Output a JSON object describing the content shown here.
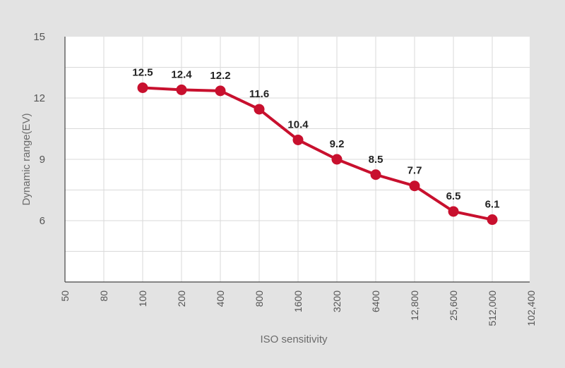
{
  "chart_data": {
    "type": "line",
    "xlabel": "ISO sensitivity",
    "ylabel": "Dynamic range(EV)",
    "categories": [
      "50",
      "80",
      "100",
      "200",
      "400",
      "800",
      "1600",
      "3200",
      "6400",
      "12,800",
      "25,600",
      "512,000",
      "102,400"
    ],
    "y_ticks": [
      6,
      9,
      12,
      15
    ],
    "ylim": [
      3,
      15
    ],
    "grid": true,
    "series": [
      {
        "x": [
          "100",
          "200",
          "400",
          "800",
          "1600",
          "3200",
          "6400",
          "12,800",
          "25,600",
          "512,000"
        ],
        "values": [
          12.5,
          12.4,
          12.2,
          11.6,
          10.4,
          9.2,
          8.5,
          7.7,
          6.5,
          6.1
        ],
        "plotted_values": [
          12.5,
          12.4,
          12.35,
          11.45,
          9.95,
          9.0,
          8.25,
          7.7,
          6.45,
          6.05
        ],
        "color": "#c8102e"
      }
    ],
    "colors": {
      "line": "#c8102e",
      "background": "#e3e3e3",
      "plot_background": "#ffffff",
      "grid": "#d9d9d9"
    }
  }
}
